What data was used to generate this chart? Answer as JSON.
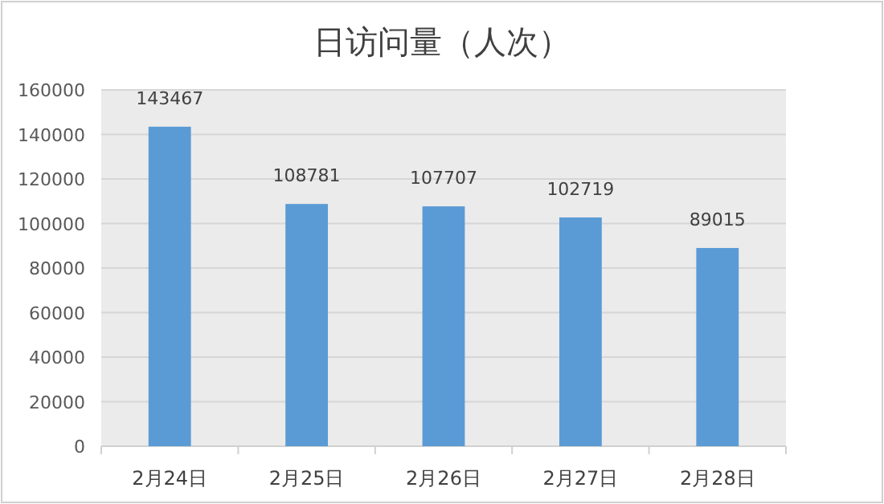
{
  "chart_data": {
    "type": "bar",
    "title": "日访问量（人次）",
    "categories": [
      "2月24日",
      "2月25日",
      "2月26日",
      "2月27日",
      "2月28日"
    ],
    "values": [
      143467,
      108781,
      107707,
      102719,
      89015
    ],
    "color": "#5b9bd5",
    "ylim": [
      0,
      160000
    ],
    "yticks": [
      0,
      20000,
      40000,
      60000,
      80000,
      100000,
      120000,
      140000,
      160000
    ],
    "grid": "y",
    "data_labels": true
  }
}
